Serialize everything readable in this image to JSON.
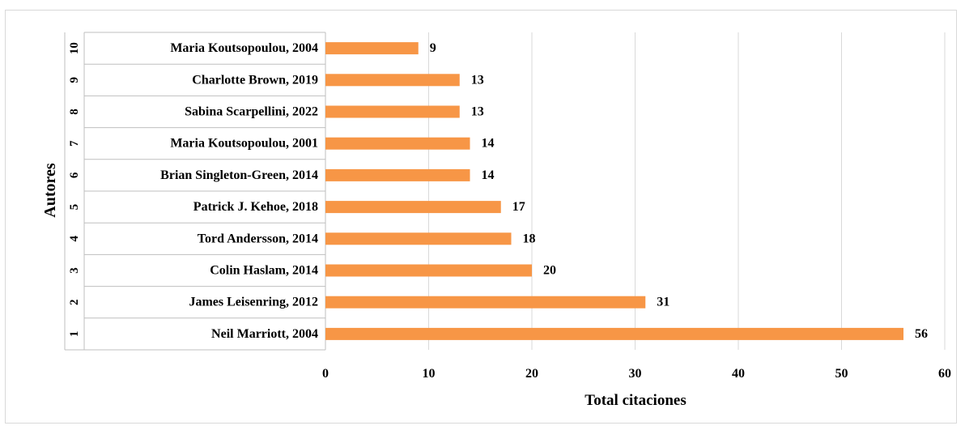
{
  "chart_data": {
    "type": "bar",
    "orientation": "horizontal",
    "title": "",
    "xlabel": "Total citaciones",
    "ylabel": "Autores",
    "xlim": [
      0,
      60
    ],
    "x_ticks": [
      0,
      10,
      20,
      30,
      40,
      50,
      60
    ],
    "grid": "vertical",
    "legend": "none",
    "bar_color": "#F79646",
    "rows": [
      {
        "rank": "1",
        "author": "Neil Marriott, 2004",
        "value": 56
      },
      {
        "rank": "2",
        "author": "James Leisenring, 2012",
        "value": 31
      },
      {
        "rank": "3",
        "author": "Colin Haslam, 2014",
        "value": 20
      },
      {
        "rank": "4",
        "author": "Tord Andersson, 2014",
        "value": 18
      },
      {
        "rank": "5",
        "author": "Patrick J. Kehoe, 2018",
        "value": 17
      },
      {
        "rank": "6",
        "author": "Brian Singleton-Green, 2014",
        "value": 14
      },
      {
        "rank": "7",
        "author": "Maria Koutsopoulou, 2001",
        "value": 14
      },
      {
        "rank": "8",
        "author": "Sabina Scarpellini, 2022",
        "value": 13
      },
      {
        "rank": "9",
        "author": "Charlotte Brown, 2019",
        "value": 13
      },
      {
        "rank": "10",
        "author": "Maria Koutsopoulou, 2004",
        "value": 9
      }
    ]
  }
}
